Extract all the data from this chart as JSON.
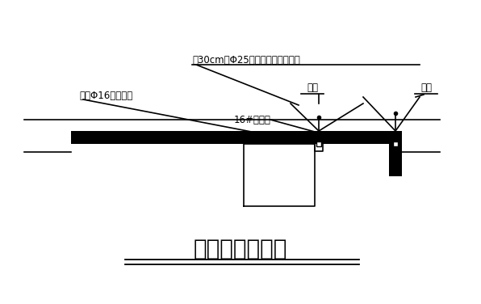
{
  "title": "节点布置示意图",
  "title_fontsize": 20,
  "bg_color": "#ffffff",
  "line_color": "#000000",
  "thick_beam_color": "#000000",
  "label_top_annotation": "将30cm长Φ25钢筋焊接在工字钢上",
  "label_ring": "预埋Φ16钢筋卡环",
  "label_ibeam": "16#工字钢",
  "label_lizu1": "立杆",
  "label_lizu2": "立杆",
  "figsize": [
    5.96,
    3.76
  ],
  "dpi": 100
}
